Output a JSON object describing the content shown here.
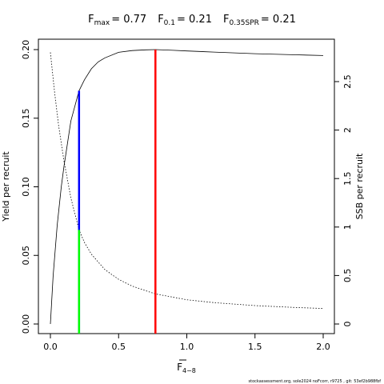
{
  "header": {
    "fmax_label": "F",
    "fmax_sub": "max",
    "fmax_value": "= 0.77",
    "f01_label": "F",
    "f01_sub": "0.1",
    "f01_value": "= 0.21",
    "fspr_label": "F",
    "fspr_sub": "0.35SPR",
    "fspr_value": "= 0.21"
  },
  "footer": {
    "credit": "stockassessment.org, sole2024 noFcorr, r9725 , git: 53ef2b988fbf"
  },
  "colors": {
    "fmax": "#ff0000",
    "f01_ypr": "#0000ff",
    "f01_ssb": "#00ff00",
    "curves": "#000000"
  },
  "chart_data": {
    "type": "line",
    "title": "",
    "xlabel": "F",
    "xlabel_sub": "4−8",
    "ylabel": "Yield per recruit",
    "ylabel_right": "SSB per recruit",
    "xlim": [
      0,
      2
    ],
    "ylim": [
      0,
      0.2
    ],
    "ylim_right": [
      0,
      2.8
    ],
    "x_ticks": [
      {
        "v": 0.0,
        "label": "0.0"
      },
      {
        "v": 0.5,
        "label": "0.5"
      },
      {
        "v": 1.0,
        "label": "1.0"
      },
      {
        "v": 1.5,
        "label": "1.5"
      },
      {
        "v": 2.0,
        "label": "2.0"
      }
    ],
    "y_ticks": [
      {
        "v": 0.0,
        "label": "0.00"
      },
      {
        "v": 0.05,
        "label": "0.05"
      },
      {
        "v": 0.1,
        "label": "0.10"
      },
      {
        "v": 0.15,
        "label": "0.15"
      },
      {
        "v": 0.2,
        "label": "0.20"
      }
    ],
    "y_ticks_right": [
      {
        "v": 0,
        "label": "0"
      },
      {
        "v": 0.5,
        "label": "0.5"
      },
      {
        "v": 1,
        "label": "1"
      },
      {
        "v": 1.5,
        "label": "1.5"
      },
      {
        "v": 2,
        "label": "2"
      },
      {
        "v": 2.5,
        "label": "2.5"
      }
    ],
    "grid": false,
    "series": [
      {
        "axis": "left",
        "style": "solid",
        "x": [
          0,
          0.02,
          0.05,
          0.08,
          0.1,
          0.15,
          0.21,
          0.25,
          0.3,
          0.35,
          0.4,
          0.5,
          0.6,
          0.7,
          0.77,
          0.9,
          1.0,
          1.2,
          1.5,
          1.8,
          2.0
        ],
        "y": [
          0,
          0.035,
          0.072,
          0.1,
          0.115,
          0.148,
          0.17,
          0.178,
          0.186,
          0.191,
          0.194,
          0.198,
          0.1993,
          0.1998,
          0.2,
          0.1995,
          0.199,
          0.1982,
          0.197,
          0.1962,
          0.1957
        ]
      },
      {
        "axis": "right",
        "style": "dotted",
        "x": [
          0,
          0.03,
          0.06,
          0.1,
          0.15,
          0.21,
          0.25,
          0.3,
          0.4,
          0.5,
          0.6,
          0.77,
          1.0,
          1.2,
          1.5,
          1.8,
          2.0
        ],
        "y": [
          2.8,
          2.4,
          2.05,
          1.68,
          1.3,
          0.97,
          0.84,
          0.72,
          0.56,
          0.46,
          0.39,
          0.31,
          0.25,
          0.22,
          0.19,
          0.17,
          0.16
        ]
      }
    ],
    "reference_lines": [
      {
        "name": "F0.1 / F0.35SPR on YPR",
        "x": 0.21,
        "y_from": 0,
        "y_to": 0.17,
        "axis": "left",
        "color": "#0000ff"
      },
      {
        "name": "F0.1 / F0.35SPR on SSB",
        "x": 0.21,
        "y_from": 0,
        "y_to": 0.97,
        "axis": "right",
        "color": "#00ff00"
      },
      {
        "name": "Fmax",
        "x": 0.77,
        "y_from": 0,
        "y_to": 0.2,
        "axis": "left",
        "color": "#ff0000"
      }
    ]
  }
}
